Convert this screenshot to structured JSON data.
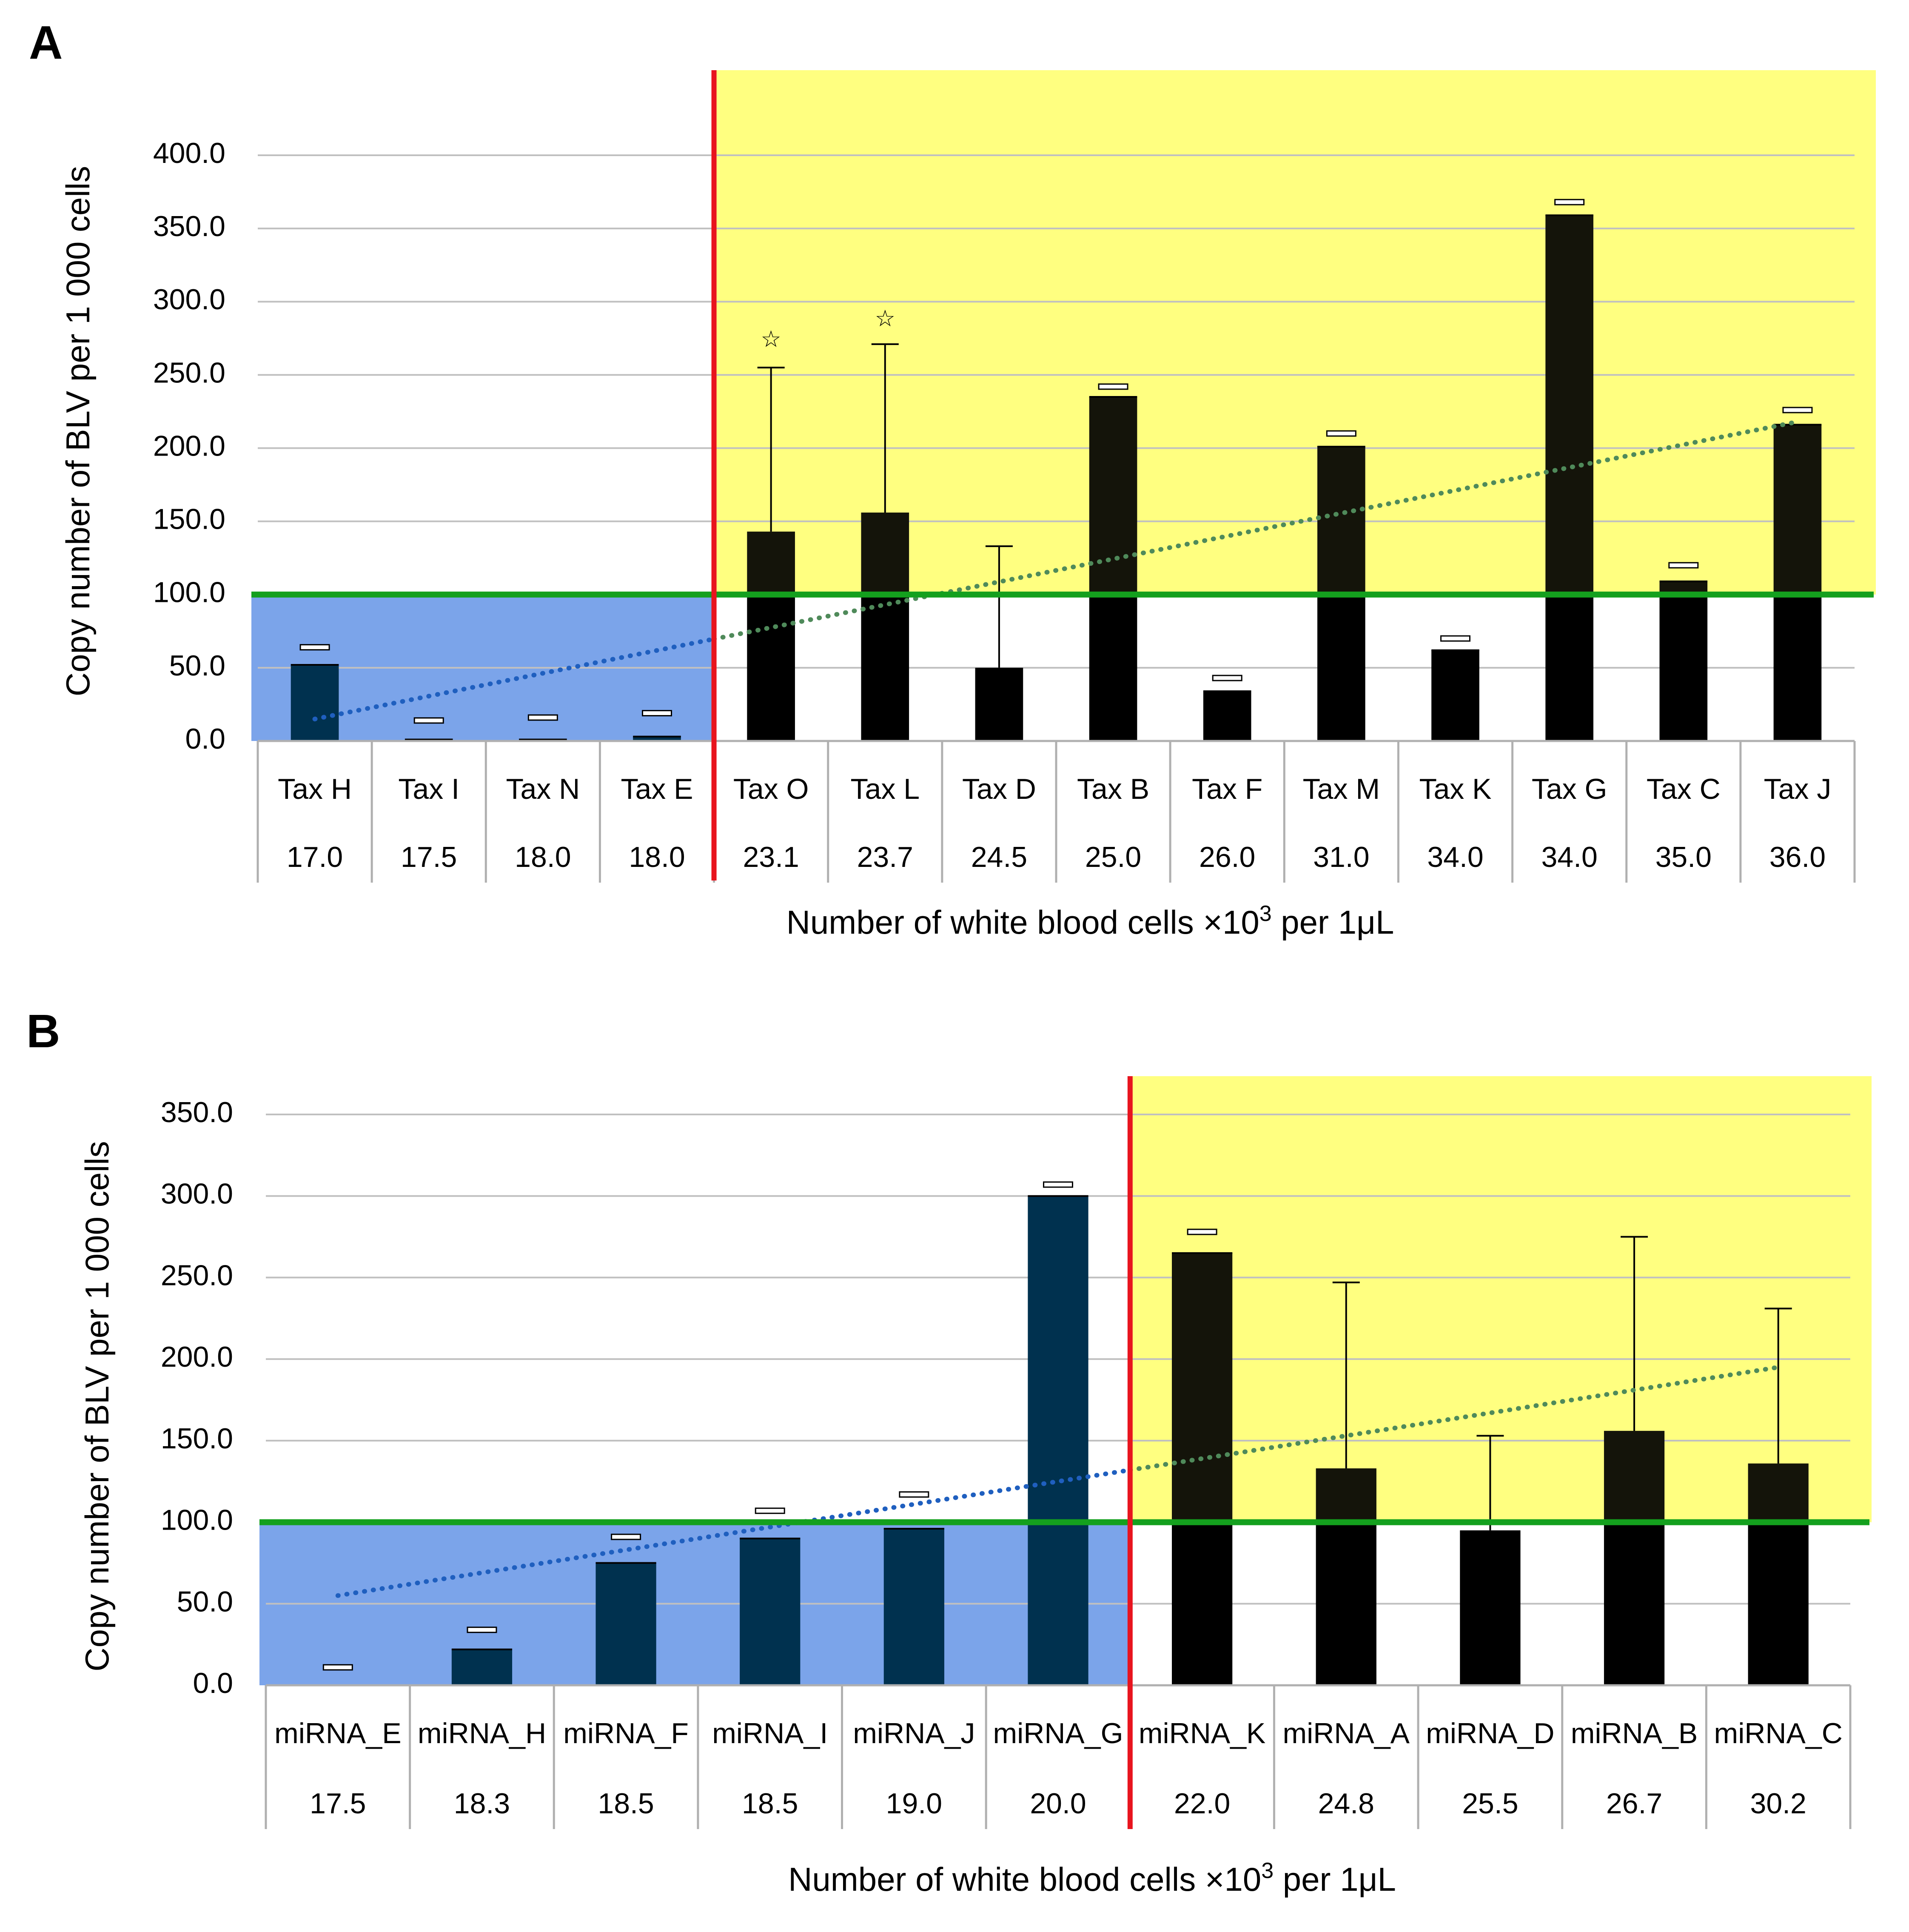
{
  "chart_data": [
    {
      "panel": "A",
      "type": "bar",
      "ylabel": "Copy number of BLV per 1 000 cells",
      "xlabel": {
        "main": "Number of white blood cells",
        "times": "×10",
        "exp": "3",
        "unit": "per 1μL"
      },
      "ylim": [
        0,
        400
      ],
      "yticks": [
        "0.0",
        "50.0",
        "100.0",
        "150.0",
        "200.0",
        "250.0",
        "300.0",
        "350.0",
        "400.0"
      ],
      "ytick_values": [
        0,
        50,
        100,
        150,
        200,
        250,
        300,
        350,
        400
      ],
      "grid": true,
      "threshold": 100,
      "split_after_index": 3,
      "categories": [
        "Tax H",
        "Tax I",
        "Tax N",
        "Tax E",
        "Tax O",
        "Tax L",
        "Tax D",
        "Tax B",
        "Tax F",
        "Tax M",
        "Tax K",
        "Tax G",
        "Tax C",
        "Tax J"
      ],
      "wbc": [
        "17.0",
        "17.5",
        "18.0",
        "18.0",
        "23.1",
        "23.7",
        "24.5",
        "25.0",
        "26.0",
        "31.0",
        "34.0",
        "34.0",
        "35.0",
        "36.0"
      ],
      "values": [
        52,
        1,
        1,
        3,
        143,
        156,
        50,
        235,
        34,
        201,
        62,
        359,
        109,
        216
      ],
      "error_upper": [
        64,
        14,
        16,
        19,
        255,
        271,
        133,
        242,
        43,
        210,
        70,
        368,
        120,
        226
      ],
      "star_markers": [
        {
          "index": 4,
          "value": 275,
          "symbol": "☆"
        },
        {
          "index": 5,
          "value": 289,
          "symbol": "☆"
        }
      ],
      "trendline": {
        "start": 15,
        "end": 218
      }
    },
    {
      "panel": "B",
      "type": "bar",
      "ylabel": "Copy number of BLV per 1 000 cells",
      "xlabel": {
        "main": "Number of white blood cells",
        "times": "×10",
        "exp": "3",
        "unit": "per 1μL"
      },
      "ylim": [
        0,
        350
      ],
      "yticks": [
        "0.0",
        "50.0",
        "100.0",
        "150.0",
        "200.0",
        "250.0",
        "300.0",
        "350.0"
      ],
      "ytick_values": [
        0,
        50,
        100,
        150,
        200,
        250,
        300,
        350
      ],
      "grid": true,
      "threshold": 100,
      "split_after_index": 5,
      "categories": [
        "miRNA_E",
        "miRNA_H",
        "miRNA_F",
        "miRNA_I",
        "miRNA_J",
        "miRNA_G",
        "miRNA_K",
        "miRNA_A",
        "miRNA_D",
        "miRNA_B",
        "miRNA_C"
      ],
      "wbc": [
        "17.5",
        "18.3",
        "18.5",
        "18.5",
        "19.0",
        "20.0",
        "22.0",
        "24.8",
        "25.5",
        "26.7",
        "30.2"
      ],
      "values": [
        0,
        22,
        75,
        90,
        96,
        300,
        265,
        133,
        95,
        156,
        136
      ],
      "error_upper": [
        11,
        34,
        91,
        107,
        117,
        307,
        278,
        247,
        153,
        275,
        231
      ],
      "star_markers": [],
      "trendline": {
        "start": 55,
        "end": 195
      }
    }
  ],
  "colors": {
    "bar": "#000000",
    "bar_on_yellow": "#14140a",
    "bar_on_blue": "#00314f",
    "yellow_region": "#ffff80",
    "blue_region": "#7ba4ea",
    "threshold_line": "#14a01e",
    "split_line": "#e8141e",
    "trend_blue": "#1f5fbf",
    "trend_green": "#4f8a5a",
    "grid": "#c0c0c0",
    "axis": "#b0b0b0"
  }
}
